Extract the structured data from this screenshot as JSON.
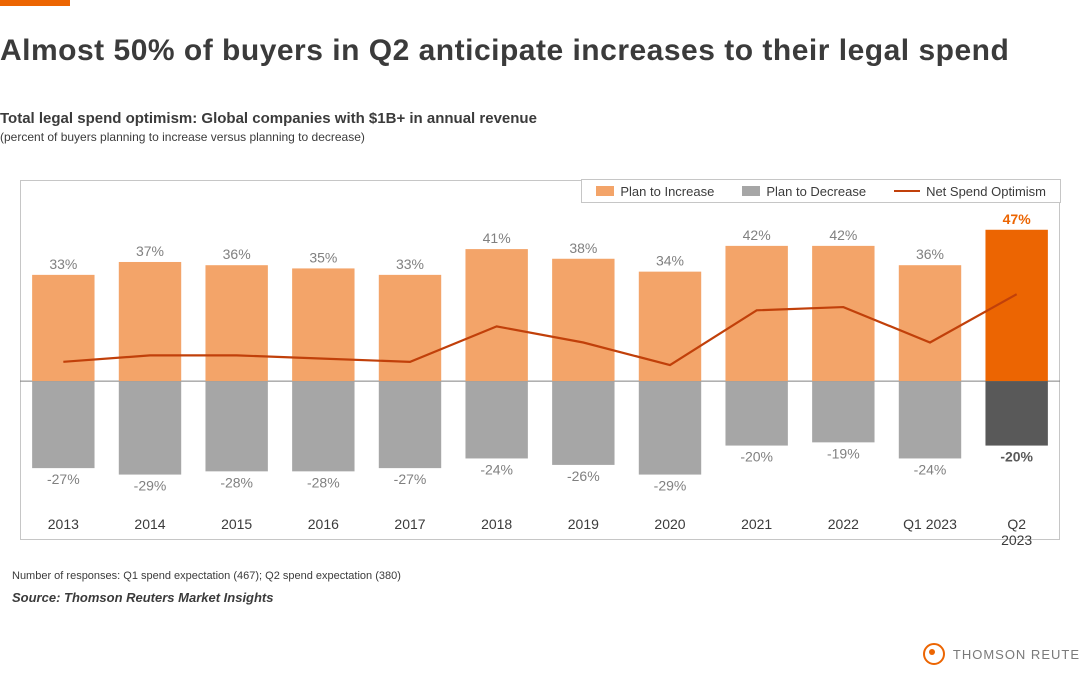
{
  "accent_color": "#ec6502",
  "title": "Almost 50% of buyers in Q2 anticipate increases to their legal spend",
  "subtitle": "Total legal spend optimism: Global companies with $1B+ in annual revenue",
  "subtitle_note": "(percent of buyers planning to increase versus planning to decrease)",
  "legend": {
    "increase": "Plan to Increase",
    "decrease": "Plan to Decrease",
    "net": "Net Spend Optimism"
  },
  "chart": {
    "type": "bar+line",
    "background_color": "#ffffff",
    "frame_color": "#c6c6c6",
    "axis_color": "#808080",
    "domain_pct": [
      -40,
      55
    ],
    "bar_width_ratio": 0.72,
    "label_fontsize": 14,
    "value_fontsize": 14,
    "categories": [
      "2013",
      "2014",
      "2015",
      "2016",
      "2017",
      "2018",
      "2019",
      "2020",
      "2021",
      "2022",
      "Q1 2023",
      "Q2 2023"
    ],
    "increase_values": [
      33,
      37,
      36,
      35,
      33,
      41,
      38,
      34,
      42,
      42,
      36,
      47
    ],
    "decrease_values": [
      -27,
      -29,
      -28,
      -28,
      -27,
      -24,
      -26,
      -29,
      -20,
      -19,
      -24,
      -20
    ],
    "highlight_index": 11,
    "colors": {
      "increase_normal": "#f3a469",
      "increase_highlight": "#ec6502",
      "decrease_normal": "#a6a6a6",
      "decrease_highlight": "#595959",
      "line": "#c1400a",
      "value_label": "#808080",
      "value_label_highlight_inc": "#ec6502",
      "value_label_highlight_dec": "#595959"
    }
  },
  "footnote": "Number of responses: Q1 spend expectation (467); Q2 spend expectation (380)",
  "source": "Source: Thomson Reuters Market Insights",
  "brand": "THOMSON REUTE"
}
